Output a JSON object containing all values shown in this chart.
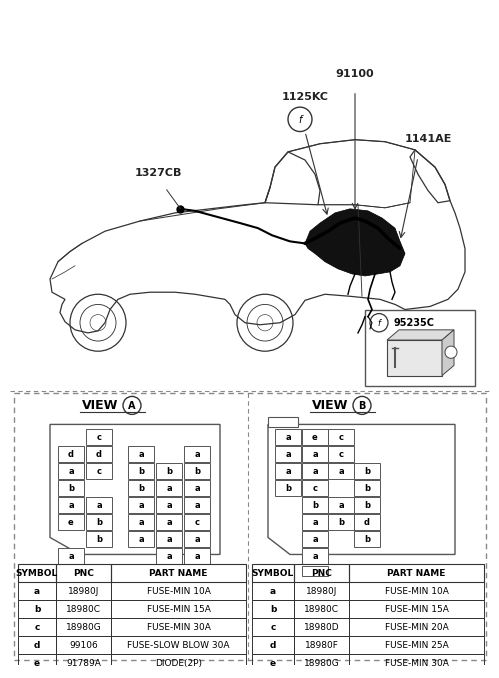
{
  "bg_color": "#ffffff",
  "view_a_title": "VIEW",
  "view_b_title": "VIEW",
  "label_91100": "91100",
  "label_1125KC": "1125KC",
  "label_1327CB": "1327CB",
  "label_1141AE": "1141AE",
  "label_inset": "95235C",
  "view_a_fuse_rows": [
    [
      "c",
      "",
      "",
      "",
      ""
    ],
    [
      "d",
      "d",
      "a",
      "",
      "a"
    ],
    [
      "a",
      "c",
      "b",
      "b",
      "b"
    ],
    [
      "b",
      "",
      "b",
      "a",
      "a"
    ],
    [
      "a",
      "a",
      "a",
      "a",
      "a"
    ],
    [
      "e",
      "b",
      "a",
      "a",
      "c"
    ],
    [
      "",
      "b",
      "a",
      "a",
      "a"
    ],
    [
      "a",
      "",
      "",
      "a",
      "a"
    ]
  ],
  "view_b_fuse_rows": [
    [
      "a",
      "e",
      "c",
      ""
    ],
    [
      "a",
      "a",
      "c",
      ""
    ],
    [
      "a",
      "a",
      "a",
      "b"
    ],
    [
      "b",
      "c",
      "",
      "b"
    ],
    [
      "",
      "b",
      "a",
      "b"
    ],
    [
      "",
      "a",
      "b",
      "d"
    ],
    [
      "",
      "a",
      "",
      "b"
    ],
    [
      "",
      "a",
      "",
      ""
    ]
  ],
  "view_a_table_rows": [
    [
      "a",
      "18980J",
      "FUSE-MIN 10A"
    ],
    [
      "b",
      "18980C",
      "FUSE-MIN 15A"
    ],
    [
      "c",
      "18980G",
      "FUSE-MIN 30A"
    ],
    [
      "d",
      "99106",
      "FUSE-SLOW BLOW 30A"
    ],
    [
      "e",
      "91789A",
      "DIODE(2P)"
    ]
  ],
  "view_b_table_rows": [
    [
      "a",
      "18980J",
      "FUSE-MIN 10A"
    ],
    [
      "b",
      "18980C",
      "FUSE-MIN 15A"
    ],
    [
      "c",
      "18980D",
      "FUSE-MIN 20A"
    ],
    [
      "d",
      "18980F",
      "FUSE-MIN 25A"
    ],
    [
      "e",
      "18980G",
      "FUSE-MIN 30A"
    ]
  ]
}
